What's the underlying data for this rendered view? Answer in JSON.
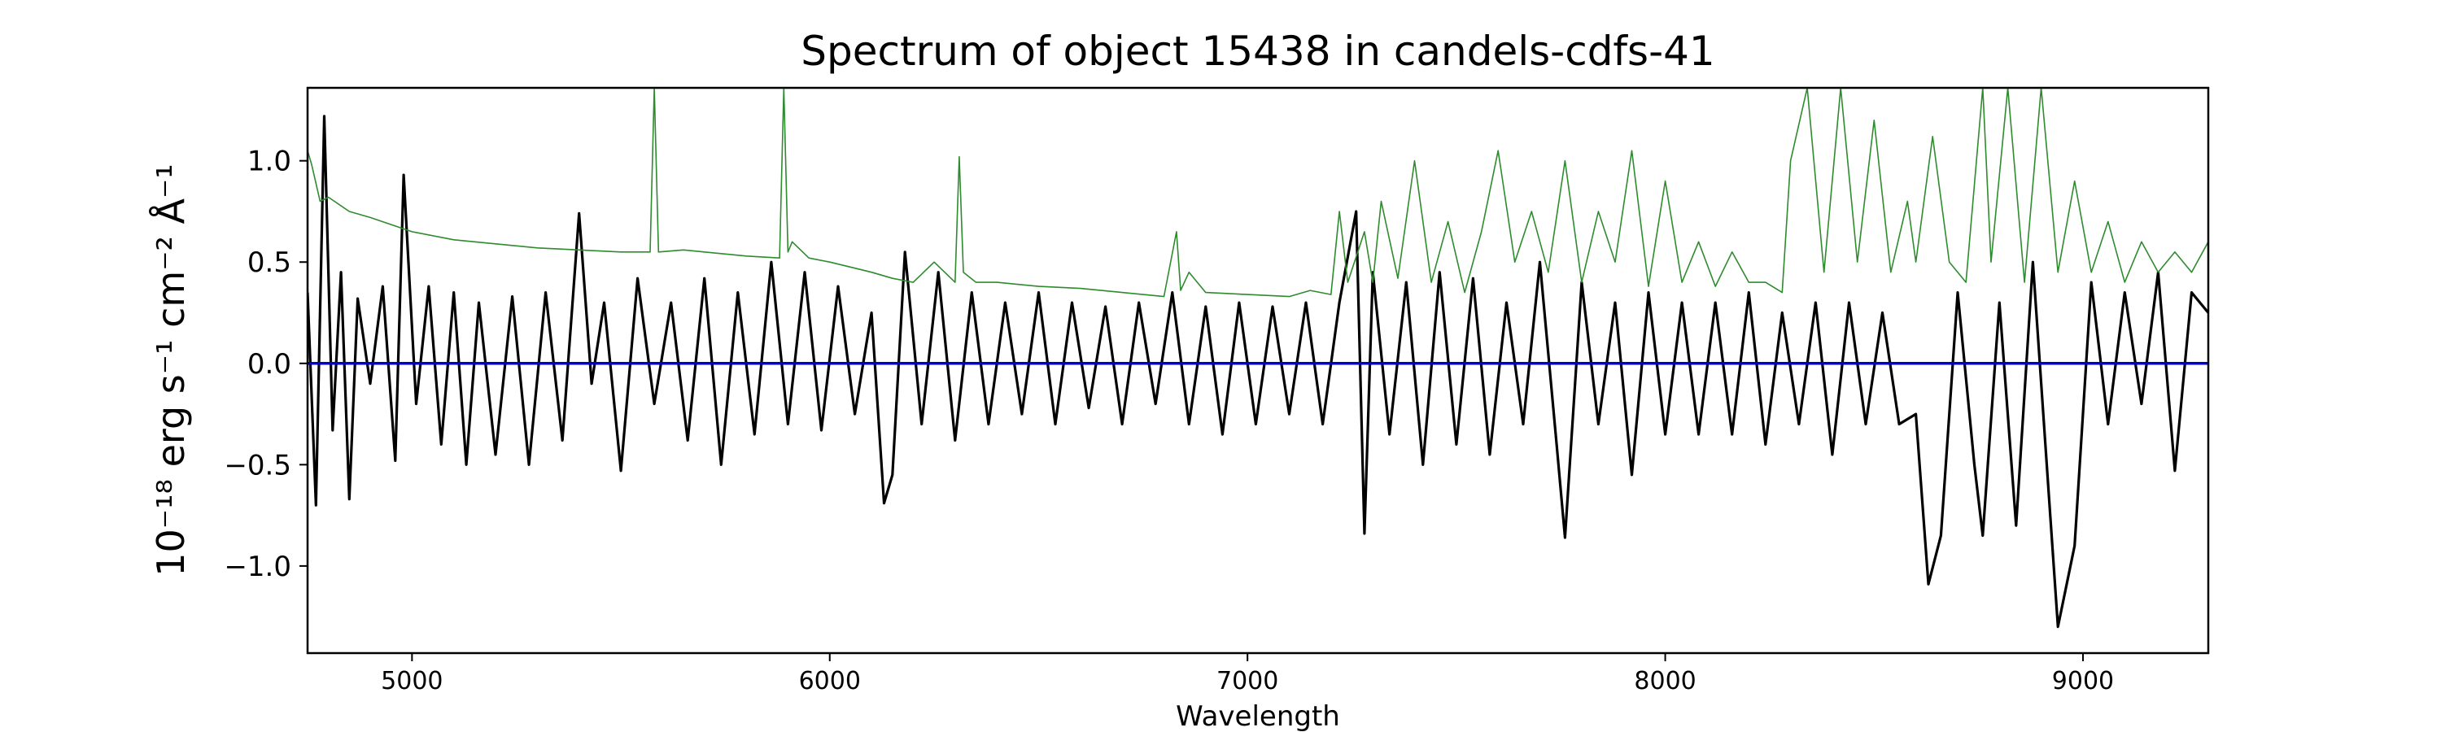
{
  "chart_data": {
    "type": "line",
    "title": "Spectrum of object 15438 in candels-cdfs-41",
    "xlabel": "Wavelength",
    "ylabel": "10⁻¹⁸ erg s⁻¹ cm⁻² Å⁻¹",
    "xlim": [
      4750,
      9300
    ],
    "ylim": [
      -1.43,
      1.36
    ],
    "xticks": [
      5000,
      6000,
      7000,
      8000,
      9000
    ],
    "xtick_labels": [
      "5000",
      "6000",
      "7000",
      "8000",
      "9000"
    ],
    "yticks": [
      1.0,
      0.5,
      0.0,
      -0.5,
      -1.0
    ],
    "ytick_labels": [
      "1.0",
      "0.5",
      "0.0",
      "−0.5",
      "−1.0"
    ],
    "grid": false,
    "legend": "none",
    "series": [
      {
        "color": "#000000",
        "x": [
          4750,
          4770,
          4790,
          4810,
          4830,
          4850,
          4870,
          4900,
          4930,
          4960,
          4980,
          5010,
          5040,
          5070,
          5100,
          5130,
          5160,
          5200,
          5240,
          5280,
          5320,
          5360,
          5400,
          5430,
          5460,
          5500,
          5540,
          5580,
          5620,
          5660,
          5700,
          5740,
          5780,
          5820,
          5860,
          5900,
          5940,
          5980,
          6020,
          6060,
          6100,
          6130,
          6150,
          6180,
          6220,
          6260,
          6300,
          6340,
          6380,
          6420,
          6460,
          6500,
          6540,
          6580,
          6620,
          6660,
          6700,
          6740,
          6780,
          6820,
          6860,
          6900,
          6940,
          6980,
          7020,
          7060,
          7100,
          7140,
          7180,
          7220,
          7260,
          7280,
          7300,
          7340,
          7380,
          7420,
          7460,
          7500,
          7540,
          7580,
          7620,
          7660,
          7700,
          7740,
          7760,
          7800,
          7840,
          7880,
          7920,
          7960,
          8000,
          8040,
          8080,
          8120,
          8160,
          8200,
          8240,
          8280,
          8320,
          8360,
          8400,
          8440,
          8480,
          8520,
          8560,
          8600,
          8630,
          8660,
          8700,
          8740,
          8760,
          8800,
          8840,
          8880,
          8920,
          8940,
          8980,
          9020,
          9060,
          9100,
          9140,
          9180,
          9220,
          9260,
          9300
        ],
        "y": [
          0.35,
          -0.7,
          1.22,
          -0.33,
          0.45,
          -0.67,
          0.32,
          -0.1,
          0.38,
          -0.48,
          0.93,
          -0.2,
          0.38,
          -0.4,
          0.35,
          -0.5,
          0.3,
          -0.45,
          0.33,
          -0.5,
          0.35,
          -0.38,
          0.74,
          -0.1,
          0.3,
          -0.53,
          0.42,
          -0.2,
          0.3,
          -0.38,
          0.42,
          -0.5,
          0.35,
          -0.35,
          0.5,
          -0.3,
          0.45,
          -0.33,
          0.38,
          -0.25,
          0.25,
          -0.69,
          -0.55,
          0.55,
          -0.3,
          0.45,
          -0.38,
          0.35,
          -0.3,
          0.3,
          -0.25,
          0.35,
          -0.3,
          0.3,
          -0.22,
          0.28,
          -0.3,
          0.3,
          -0.2,
          0.35,
          -0.3,
          0.28,
          -0.35,
          0.3,
          -0.3,
          0.28,
          -0.25,
          0.3,
          -0.3,
          0.3,
          0.75,
          -0.84,
          0.45,
          -0.35,
          0.4,
          -0.5,
          0.45,
          -0.4,
          0.42,
          -0.45,
          0.3,
          -0.3,
          0.5,
          -0.4,
          -0.86,
          0.4,
          -0.3,
          0.3,
          -0.55,
          0.35,
          -0.35,
          0.3,
          -0.35,
          0.3,
          -0.35,
          0.35,
          -0.4,
          0.25,
          -0.3,
          0.3,
          -0.45,
          0.3,
          -0.3,
          0.25,
          -0.3,
          -0.25,
          -1.09,
          -0.85,
          0.35,
          -0.5,
          -0.85,
          0.3,
          -0.8,
          0.5,
          -0.7,
          -1.3,
          -0.9,
          0.4,
          -0.3,
          0.35,
          -0.2,
          0.45,
          -0.53,
          0.35,
          0.25
        ]
      },
      {
        "color": "#2e8b2e",
        "x": [
          4750,
          4760,
          4780,
          4800,
          4850,
          4900,
          5000,
          5100,
          5200,
          5300,
          5400,
          5500,
          5570,
          5580,
          5590,
          5650,
          5800,
          5880,
          5890,
          5900,
          5910,
          5950,
          6000,
          6100,
          6150,
          6200,
          6250,
          6300,
          6310,
          6320,
          6350,
          6400,
          6500,
          6600,
          6700,
          6800,
          6830,
          6840,
          6860,
          6900,
          7000,
          7100,
          7150,
          7200,
          7220,
          7240,
          7280,
          7300,
          7320,
          7360,
          7400,
          7440,
          7480,
          7520,
          7560,
          7600,
          7640,
          7680,
          7720,
          7760,
          7800,
          7840,
          7880,
          7920,
          7960,
          8000,
          8040,
          8080,
          8120,
          8160,
          8200,
          8240,
          8280,
          8300,
          8340,
          8380,
          8420,
          8460,
          8500,
          8540,
          8580,
          8600,
          8640,
          8680,
          8720,
          8760,
          8780,
          8820,
          8860,
          8900,
          8940,
          8980,
          9020,
          9060,
          9100,
          9140,
          9180,
          9220,
          9260,
          9300
        ],
        "y": [
          1.05,
          0.98,
          0.8,
          0.82,
          0.75,
          0.72,
          0.65,
          0.61,
          0.59,
          0.57,
          0.56,
          0.55,
          0.55,
          1.36,
          0.55,
          0.56,
          0.53,
          0.52,
          1.36,
          0.55,
          0.6,
          0.52,
          0.5,
          0.45,
          0.42,
          0.4,
          0.5,
          0.4,
          1.02,
          0.45,
          0.4,
          0.4,
          0.38,
          0.37,
          0.35,
          0.33,
          0.65,
          0.36,
          0.45,
          0.35,
          0.34,
          0.33,
          0.36,
          0.34,
          0.75,
          0.4,
          0.65,
          0.4,
          0.8,
          0.42,
          1.0,
          0.4,
          0.7,
          0.35,
          0.65,
          1.05,
          0.5,
          0.75,
          0.45,
          1.0,
          0.4,
          0.75,
          0.5,
          1.05,
          0.38,
          0.9,
          0.4,
          0.6,
          0.38,
          0.55,
          0.4,
          0.4,
          0.35,
          1.0,
          1.36,
          0.45,
          1.36,
          0.5,
          1.2,
          0.45,
          0.8,
          0.5,
          1.12,
          0.5,
          0.4,
          1.36,
          0.5,
          1.36,
          0.4,
          1.36,
          0.45,
          0.9,
          0.45,
          0.7,
          0.4,
          0.6,
          0.45,
          0.55,
          0.45,
          0.6
        ]
      },
      {
        "color": "#0000cc",
        "x": [
          4750,
          9300
        ],
        "y": [
          0.0,
          0.0
        ]
      }
    ]
  }
}
